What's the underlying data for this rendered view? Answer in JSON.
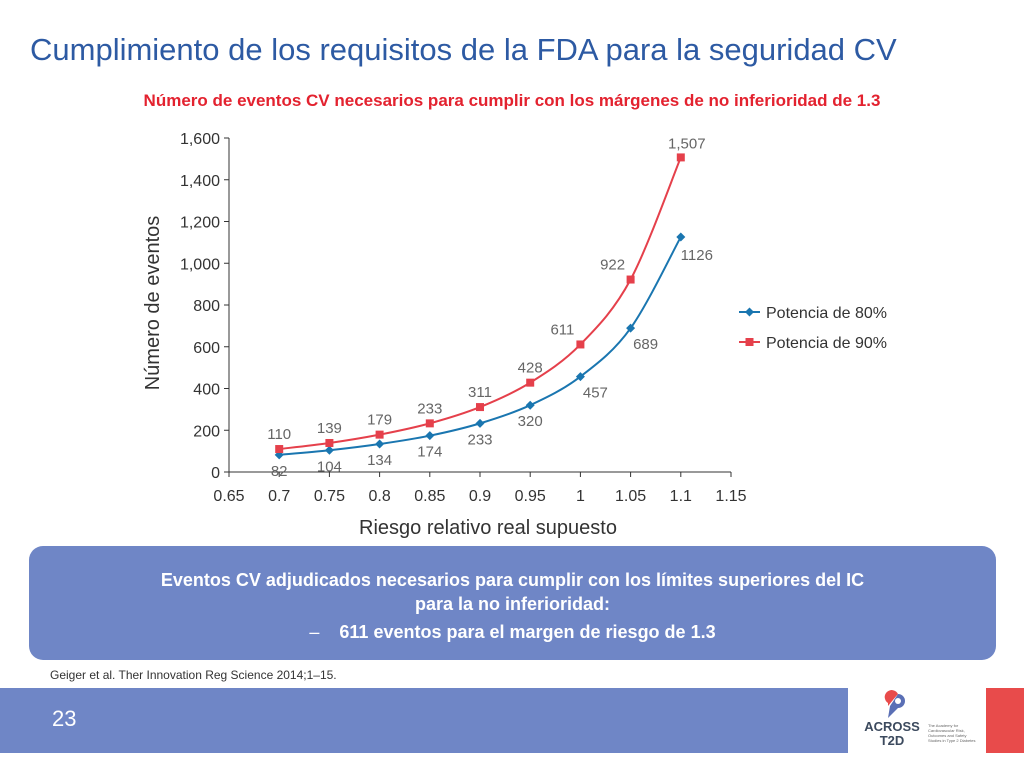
{
  "slide": {
    "title": "Cumplimiento de los requisitos de la FDA para la seguridad CV",
    "subtitle": "Número de eventos CV necesarios para cumplir con los márgenes de no inferioridad de 1.3"
  },
  "chart_data": {
    "type": "line",
    "x": [
      0.7,
      0.75,
      0.8,
      0.85,
      0.9,
      0.95,
      1,
      1.05,
      1.1
    ],
    "series": [
      {
        "name": "Potencia de 80%",
        "values": [
          82,
          104,
          134,
          174,
          233,
          320,
          457,
          689,
          1126
        ],
        "labels": [
          "82",
          "104",
          "134",
          "174",
          "233",
          "320",
          "457",
          "689",
          "1126"
        ],
        "color": "#1a76b0",
        "marker": "diamond"
      },
      {
        "name": "Potencia de 90%",
        "values": [
          110,
          139,
          179,
          233,
          311,
          428,
          611,
          922,
          1507
        ],
        "labels": [
          "110",
          "139",
          "179",
          "233",
          "311",
          "428",
          "611",
          "922",
          "1,507"
        ],
        "color": "#e5404b",
        "marker": "square"
      }
    ],
    "xlabel": "Riesgo relativo real supuesto",
    "ylabel": "Número de eventos",
    "xlim": [
      0.65,
      1.15
    ],
    "ylim": [
      0,
      1600
    ],
    "x_ticks": [
      "0.65",
      "0.7",
      "0.75",
      "0.8",
      "0.85",
      "0.9",
      "0.95",
      "1",
      "1.05",
      "1.1",
      "1.15"
    ],
    "y_ticks": [
      "0",
      "200",
      "400",
      "600",
      "800",
      "1,000",
      "1,200",
      "1,400",
      "1,600"
    ],
    "grid": false,
    "legend": "right"
  },
  "callout": {
    "line1": "Eventos CV adjudicados necesarios para cumplir con los límites superiores del IC",
    "line2": "para la no inferioridad:",
    "dash": "–",
    "bullet": "611 eventos para el margen de riesgo de 1.3"
  },
  "reference": "Geiger et al. Ther Innovation Reg Science 2014;1–15.",
  "footer": {
    "page_number": "23",
    "logo_text": "ACROSS T2D",
    "logo_tagline": "The Academy for Cardiovascular Risk, Outcomes and Safety Studies in Type 2 Diabetes"
  }
}
